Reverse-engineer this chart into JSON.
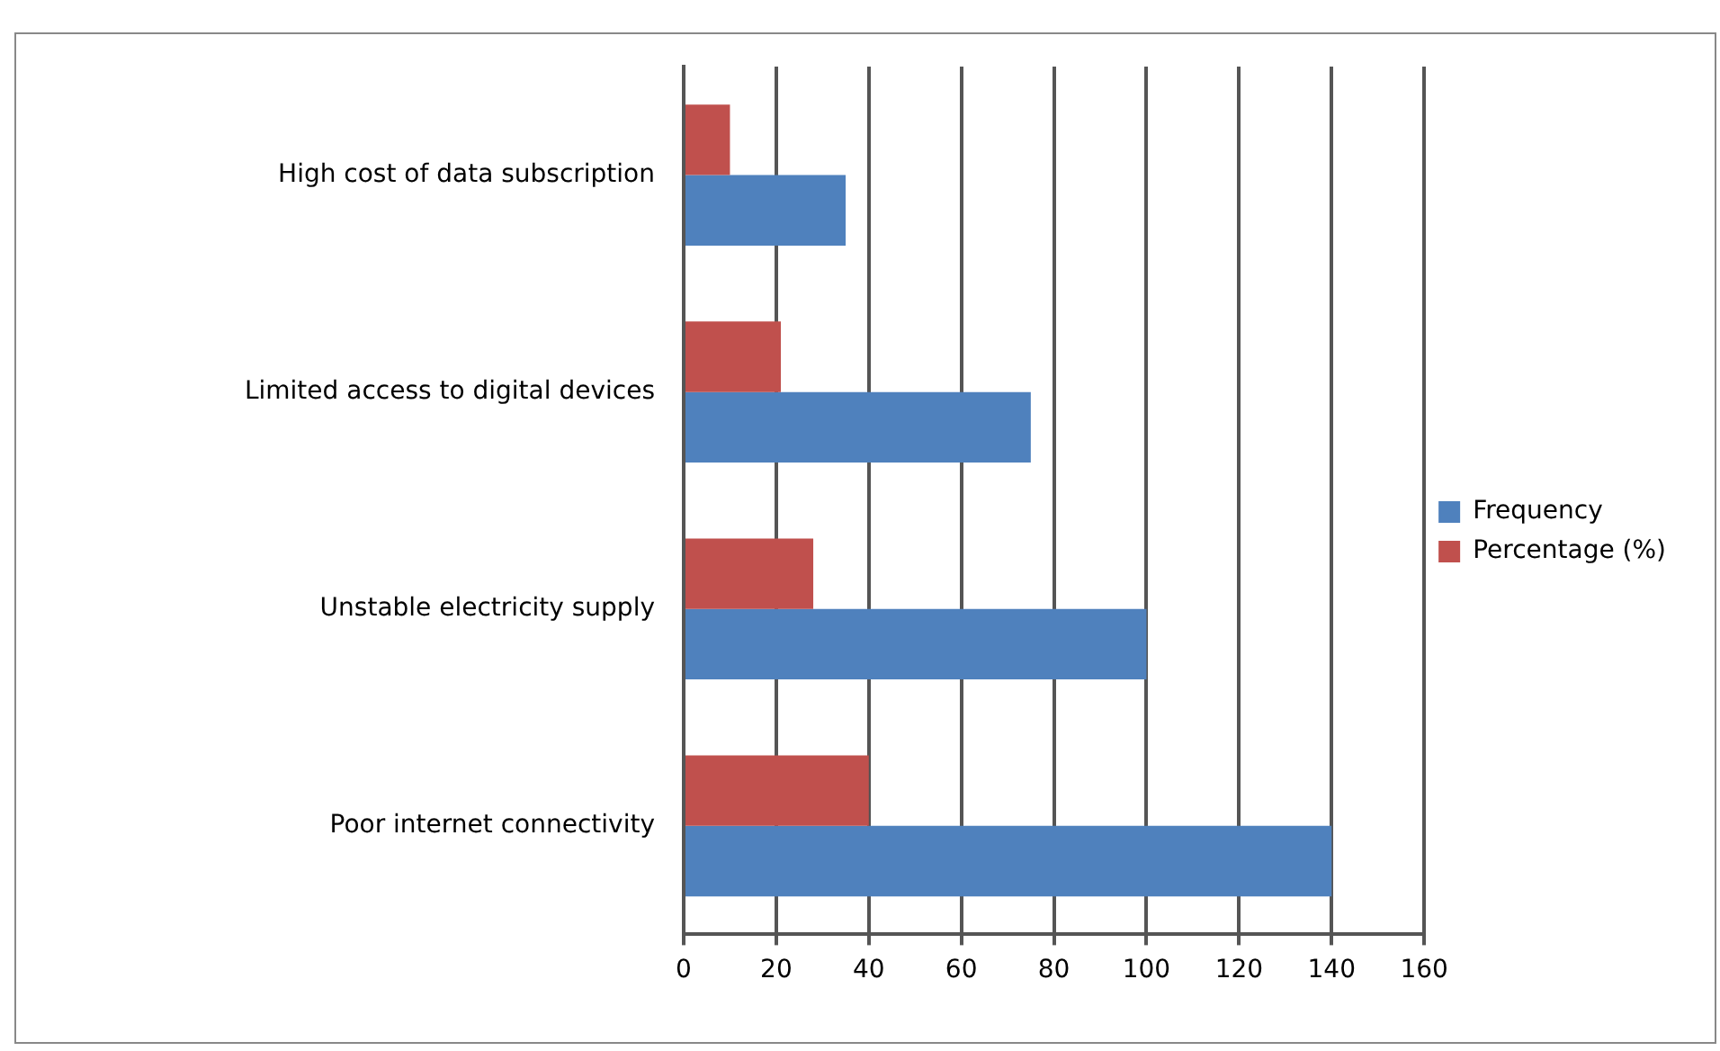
{
  "chart_data": {
    "type": "bar",
    "orientation": "horizontal",
    "categories": [
      "High cost of data subscription",
      "Limited access to digital devices",
      "Unstable electricity supply",
      "Poor internet connectivity"
    ],
    "series": [
      {
        "name": "Frequency",
        "color": "#4f81bd",
        "values": [
          35,
          75,
          100,
          140
        ]
      },
      {
        "name": "Percentage (%)",
        "color": "#c0504d",
        "values": [
          10,
          21,
          28,
          40
        ]
      }
    ],
    "xlim": [
      0,
      160
    ],
    "xticks": [
      0,
      20,
      40,
      60,
      80,
      100,
      120,
      140,
      160
    ],
    "grid": "x",
    "legend": "right"
  }
}
